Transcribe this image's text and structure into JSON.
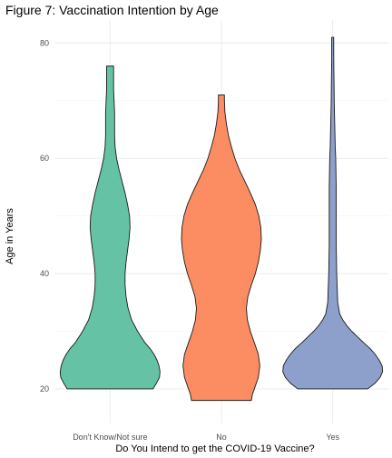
{
  "chart_data": {
    "type": "violin",
    "title": "Figure 7: Vaccination Intention by Age",
    "xlabel": "Do You Intend to get the COVID-19 Vaccine?",
    "ylabel": "Age in Years",
    "categories": [
      "Don't Know/Not sure",
      "No",
      "Yes"
    ],
    "ylim": [
      14,
      84
    ],
    "yticks": [
      20,
      40,
      60,
      80
    ],
    "grid": true,
    "colors": [
      "#66c2a5",
      "#fc8d62",
      "#8da0cb"
    ],
    "series": [
      {
        "category": "Don't Know/Not sure",
        "min": 20,
        "max": 76,
        "density": [
          [
            20,
            0.86
          ],
          [
            21,
            0.93
          ],
          [
            22,
            0.99
          ],
          [
            23,
            1.0
          ],
          [
            24,
            0.98
          ],
          [
            25,
            0.94
          ],
          [
            26,
            0.88
          ],
          [
            27,
            0.8
          ],
          [
            28,
            0.7
          ],
          [
            30,
            0.55
          ],
          [
            32,
            0.43
          ],
          [
            34,
            0.36
          ],
          [
            36,
            0.32
          ],
          [
            38,
            0.3
          ],
          [
            40,
            0.3
          ],
          [
            42,
            0.32
          ],
          [
            44,
            0.35
          ],
          [
            46,
            0.38
          ],
          [
            48,
            0.4
          ],
          [
            50,
            0.39
          ],
          [
            52,
            0.35
          ],
          [
            54,
            0.3
          ],
          [
            56,
            0.24
          ],
          [
            58,
            0.18
          ],
          [
            60,
            0.13
          ],
          [
            62,
            0.1
          ],
          [
            64,
            0.09
          ],
          [
            66,
            0.09
          ],
          [
            68,
            0.09
          ],
          [
            70,
            0.08
          ],
          [
            72,
            0.07
          ],
          [
            74,
            0.07
          ],
          [
            76,
            0.07
          ]
        ]
      },
      {
        "category": "No",
        "min": 18,
        "max": 71,
        "density": [
          [
            18,
            0.6
          ],
          [
            19,
            0.62
          ],
          [
            20,
            0.66
          ],
          [
            22,
            0.74
          ],
          [
            24,
            0.77
          ],
          [
            26,
            0.74
          ],
          [
            28,
            0.66
          ],
          [
            30,
            0.58
          ],
          [
            32,
            0.52
          ],
          [
            34,
            0.5
          ],
          [
            36,
            0.53
          ],
          [
            38,
            0.6
          ],
          [
            40,
            0.68
          ],
          [
            42,
            0.74
          ],
          [
            44,
            0.78
          ],
          [
            46,
            0.8
          ],
          [
            48,
            0.79
          ],
          [
            50,
            0.75
          ],
          [
            52,
            0.68
          ],
          [
            54,
            0.58
          ],
          [
            56,
            0.47
          ],
          [
            58,
            0.36
          ],
          [
            60,
            0.27
          ],
          [
            62,
            0.2
          ],
          [
            64,
            0.14
          ],
          [
            66,
            0.1
          ],
          [
            68,
            0.07
          ],
          [
            70,
            0.06
          ],
          [
            71,
            0.06
          ]
        ]
      },
      {
        "category": "Yes",
        "min": 20,
        "max": 81,
        "density": [
          [
            20,
            0.7
          ],
          [
            21,
            0.85
          ],
          [
            22,
            0.95
          ],
          [
            23,
            1.0
          ],
          [
            24,
            0.99
          ],
          [
            25,
            0.93
          ],
          [
            26,
            0.85
          ],
          [
            27,
            0.75
          ],
          [
            28,
            0.62
          ],
          [
            29,
            0.5
          ],
          [
            30,
            0.38
          ],
          [
            31,
            0.28
          ],
          [
            32,
            0.2
          ],
          [
            33,
            0.14
          ],
          [
            35,
            0.1
          ],
          [
            40,
            0.08
          ],
          [
            45,
            0.07
          ],
          [
            50,
            0.07
          ],
          [
            55,
            0.07
          ],
          [
            60,
            0.06
          ],
          [
            62,
            0.05
          ],
          [
            64,
            0.045
          ],
          [
            66,
            0.04
          ],
          [
            68,
            0.035
          ],
          [
            70,
            0.03
          ],
          [
            72,
            0.028
          ],
          [
            74,
            0.025
          ],
          [
            76,
            0.022
          ],
          [
            78,
            0.02
          ],
          [
            80,
            0.02
          ],
          [
            81,
            0.02
          ]
        ]
      }
    ]
  }
}
